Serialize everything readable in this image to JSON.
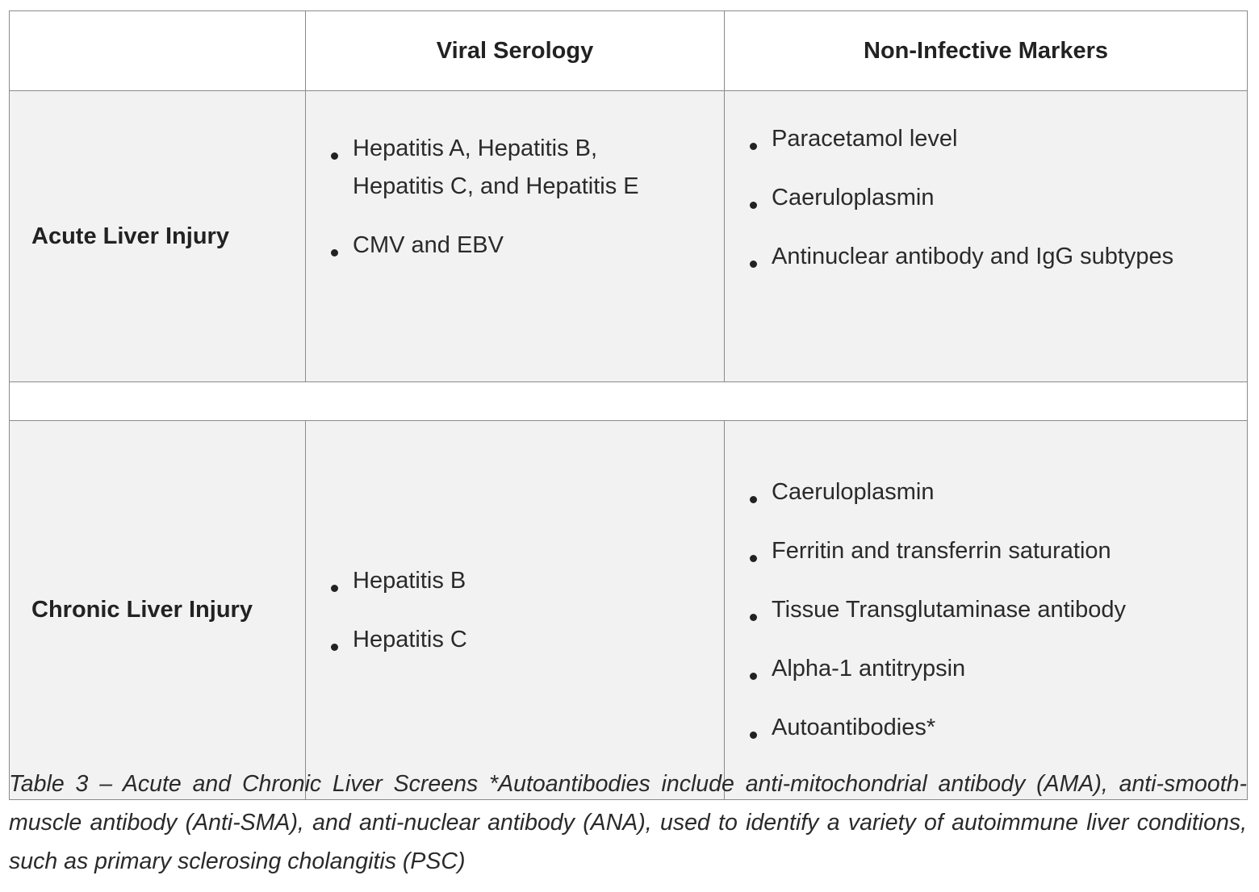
{
  "table": {
    "headers": [
      "",
      "Viral Serology",
      "Non-Infective Markers"
    ],
    "rows": [
      {
        "label": "Acute Liver Injury",
        "viral_serology": [
          "Hepatitis A, Hepatitis B, Hepatitis C, and Hepatitis E",
          "CMV and EBV"
        ],
        "non_infective_markers": [
          "Paracetamol level",
          "Caeruloplasmin",
          "Antinuclear antibody and IgG subtypes"
        ]
      },
      {
        "label": "Chronic Liver Injury",
        "viral_serology": [
          "Hepatitis B",
          "Hepatitis C"
        ],
        "non_infective_markers": [
          "Caeruloplasmin",
          "Ferritin and transferrin saturation",
          "Tissue Transglutaminase antibody",
          "Alpha-1 antitrypsin",
          "Autoantibodies*"
        ]
      }
    ]
  },
  "caption": "Table 3 – Acute and Chronic Liver Screens *Autoantibodies include anti-mitochondrial antibody (AMA), anti-smooth-muscle antibody (Anti-SMA), and anti-nuclear antibody (ANA), used to identify a variety of autoimmune liver conditions, such as primary sclerosing cholangitis (PSC)"
}
